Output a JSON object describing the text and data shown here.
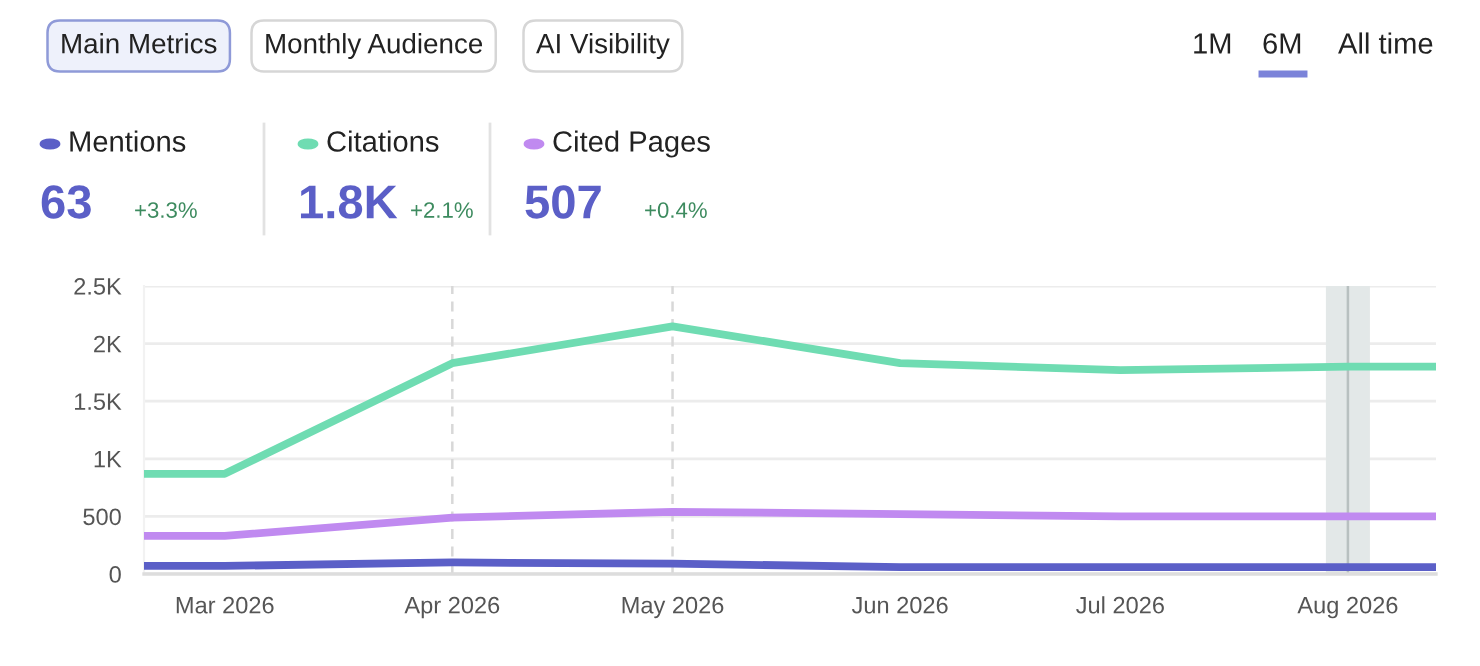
{
  "chart_data": {
    "type": "line",
    "x": [
      "2026-02-18",
      "2026-03-01",
      "2026-04-01",
      "2026-05-01",
      "2026-06-01",
      "2026-07-01",
      "2026-08-01",
      "2026-08-13"
    ],
    "series": [
      {
        "name": "Mentions",
        "color": "#5b5fc7",
        "values": [
          70,
          70,
          100,
          90,
          60,
          60,
          60,
          60
        ]
      },
      {
        "name": "Citations",
        "color": "#6fdcb2",
        "values": [
          870,
          870,
          1830,
          2150,
          1830,
          1770,
          1800,
          1800
        ]
      },
      {
        "name": "Cited Pages",
        "color": "#c08af0",
        "values": [
          330,
          330,
          490,
          540,
          520,
          500,
          500,
          500
        ]
      }
    ],
    "xlim": [
      "2026-02-18",
      "2026-08-13"
    ],
    "xticks": [
      {
        "value": "2026-03-01",
        "label": "Mar 2026"
      },
      {
        "value": "2026-04-01",
        "label": "Apr 2026"
      },
      {
        "value": "2026-05-01",
        "label": "May 2026"
      },
      {
        "value": "2026-06-01",
        "label": "Jun 2026"
      },
      {
        "value": "2026-07-01",
        "label": "Jul 2026"
      },
      {
        "value": "2026-08-01",
        "label": "Aug 2026"
      }
    ],
    "ylim": [
      0,
      2500
    ],
    "yticks": [
      0,
      500,
      {
        "value": 1000,
        "label": "1K"
      },
      {
        "value": 1500,
        "label": "1.5K"
      },
      {
        "value": 2000,
        "label": "2K"
      },
      {
        "value": 2500,
        "label": "2.5K"
      }
    ],
    "grid": "y",
    "legend": "top left",
    "marker": "none",
    "line_style": "solid",
    "ref_lines": [
      {
        "axis": "x",
        "value": "2026-04-01",
        "color": "#d8d8d8",
        "line_style": "dashed"
      },
      {
        "axis": "x",
        "value": "2026-05-01",
        "color": "#d8d8d8",
        "line_style": "dashed"
      },
      {
        "axis": "x",
        "value": "2026-08-01",
        "color": "#b8c0c0",
        "line_style": "solid"
      }
    ],
    "bands": [
      {
        "axis": "x",
        "from": "2026-07-29",
        "to": "2026-08-04",
        "color": "#e3e8e8"
      }
    ],
    "annotations": [
      "Main Metrics",
      "Monthly Audience",
      "AI Visibility",
      "1M",
      "6M",
      "All time",
      "63",
      "+3.3%",
      "1.8K",
      "+2.1%",
      "507",
      "+0.4%"
    ]
  }
}
